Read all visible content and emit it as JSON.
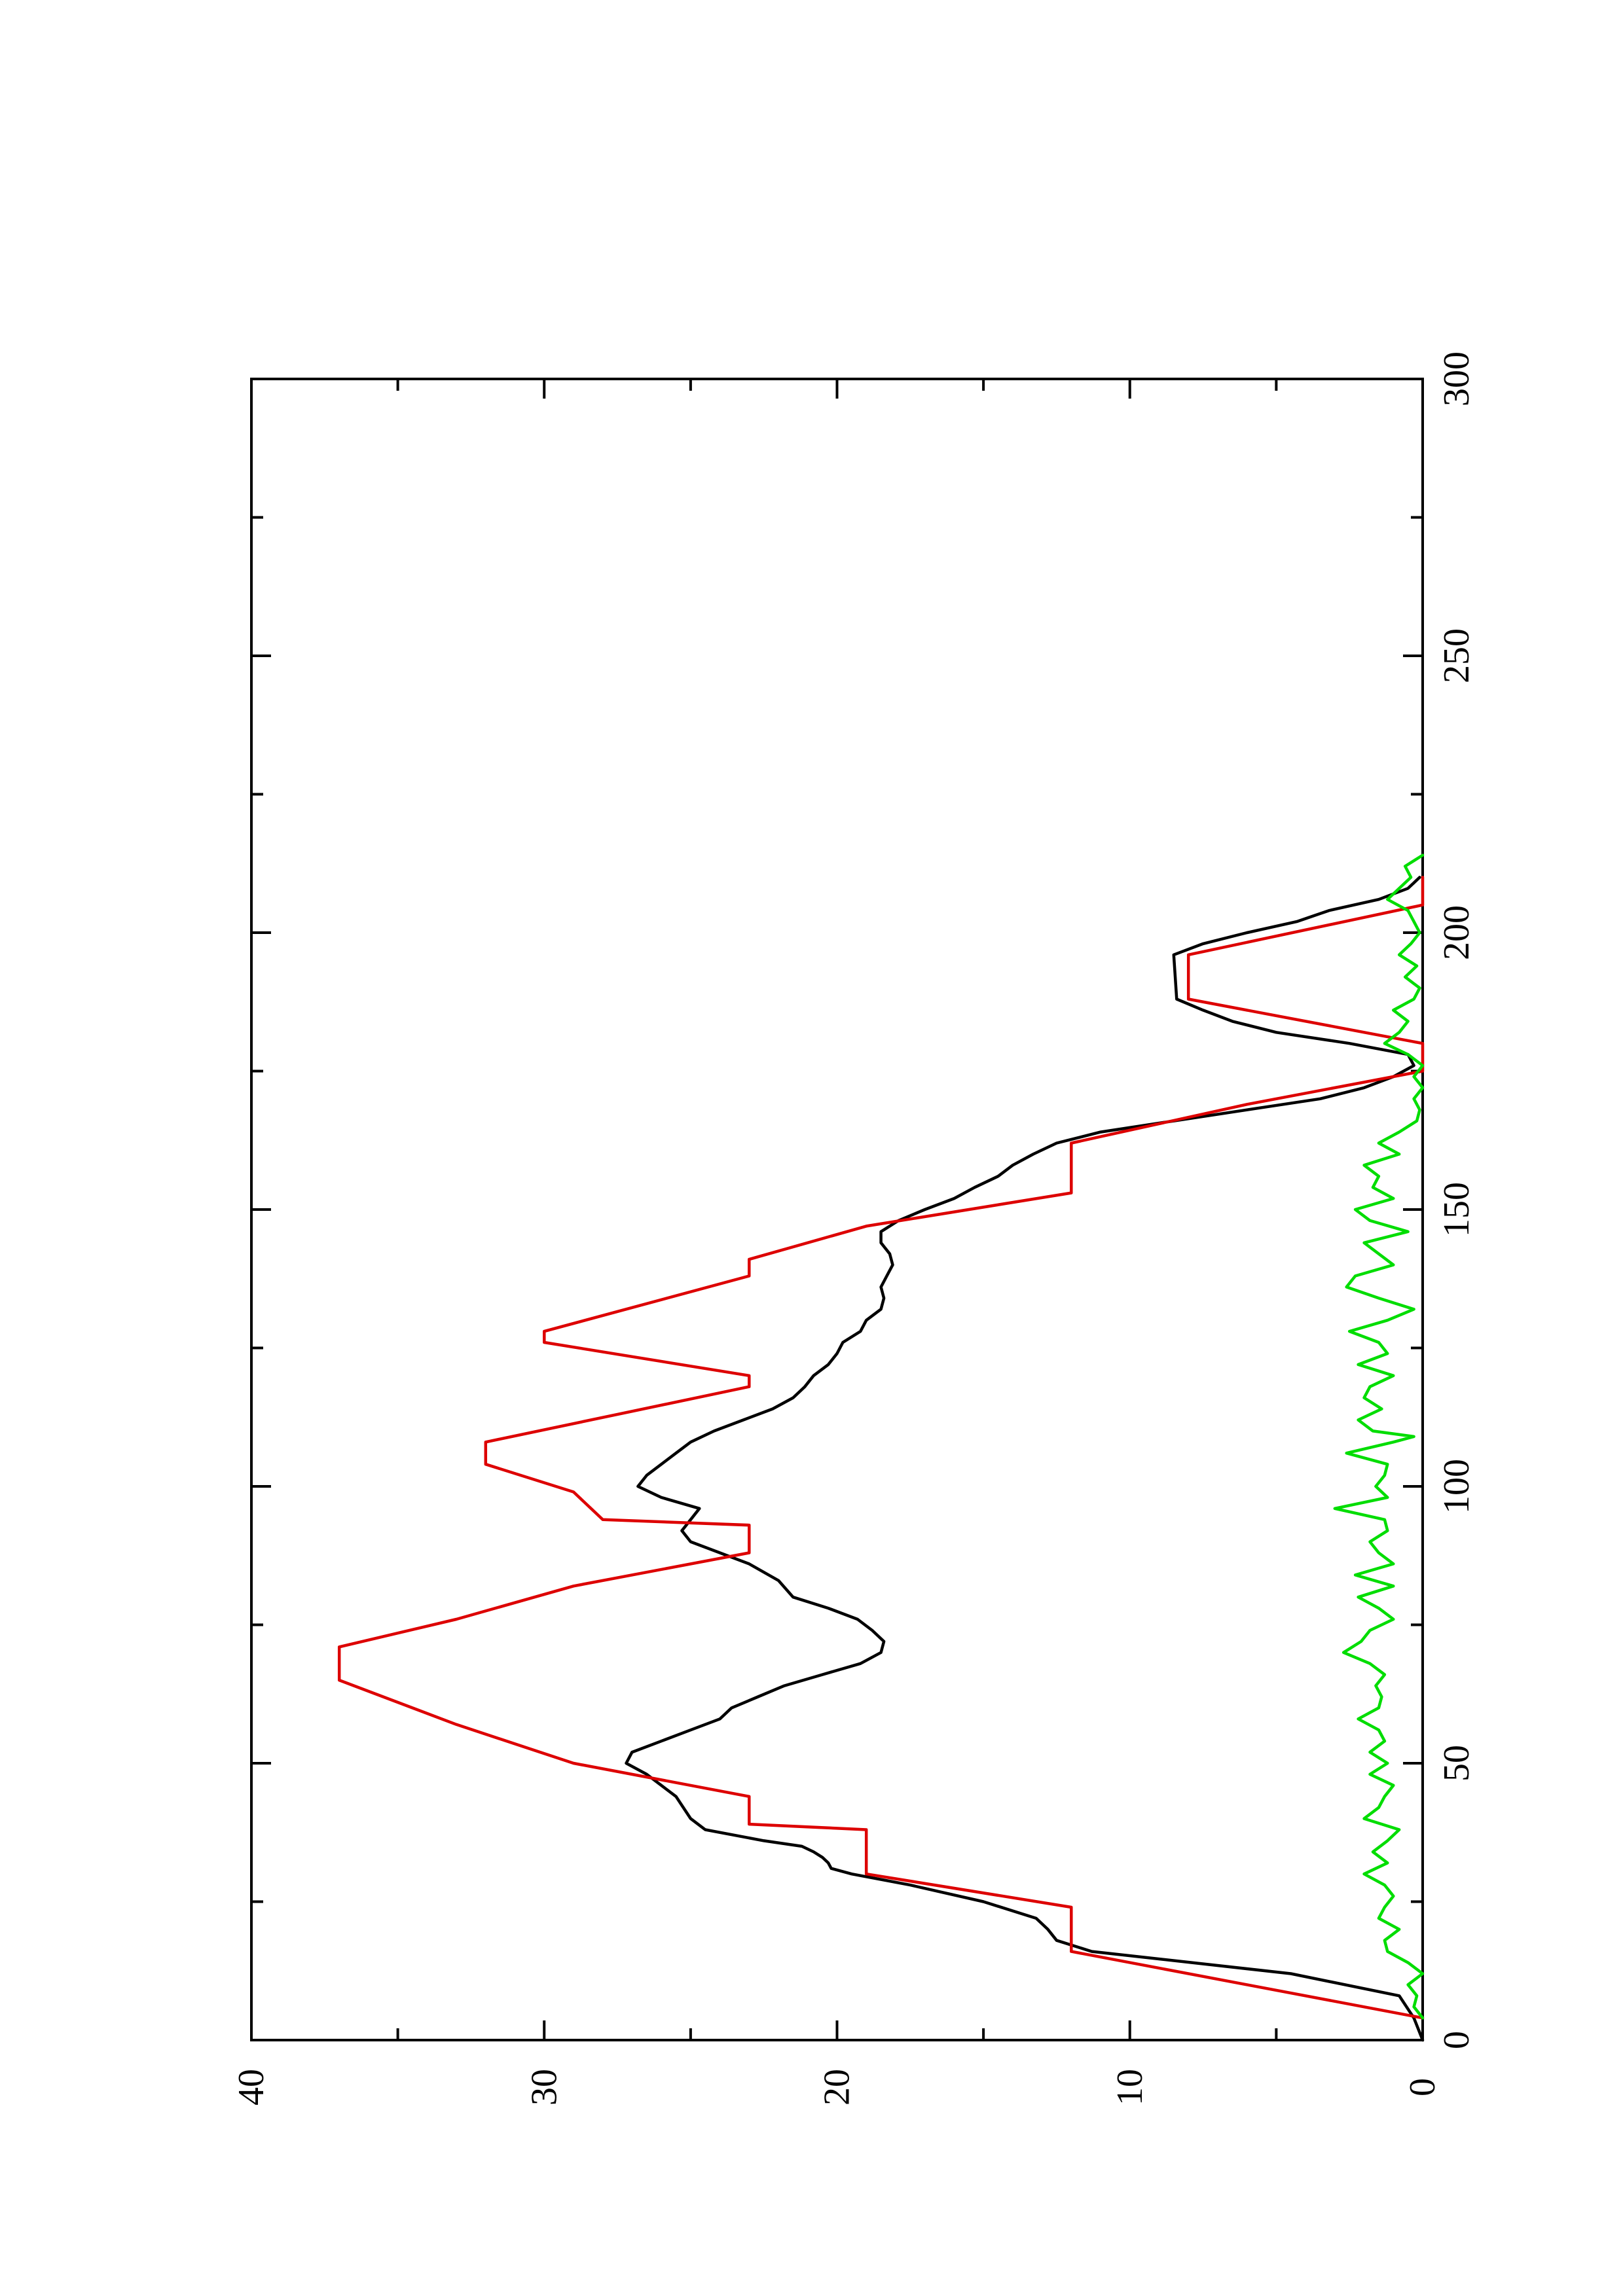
{
  "chart_data": {
    "type": "line",
    "orientation": "rotated-90-ccw",
    "title": "",
    "xlabel": "",
    "ylabel": "",
    "xlim": [
      0,
      300
    ],
    "ylim": [
      0,
      40
    ],
    "x_ticks": [
      0,
      50,
      100,
      150,
      200,
      250,
      300
    ],
    "y_ticks": [
      0,
      10,
      20,
      30,
      40
    ],
    "x_tick_labels": [
      "0",
      "50",
      "100",
      "150",
      "200",
      "250",
      "300"
    ],
    "y_tick_labels": [
      "0",
      "10",
      "20",
      "30",
      "40"
    ],
    "grid": false,
    "legend": "none",
    "series": [
      {
        "color": "#000000",
        "points": [
          [
            0,
            0
          ],
          [
            4,
            0.3
          ],
          [
            8,
            0.8
          ],
          [
            12,
            4.5
          ],
          [
            16,
            11.3
          ],
          [
            18,
            12.5
          ],
          [
            20,
            12.8
          ],
          [
            22,
            13.2
          ],
          [
            25,
            15
          ],
          [
            28,
            17.5
          ],
          [
            30,
            19.5
          ],
          [
            31,
            20.2
          ],
          [
            32,
            20.3
          ],
          [
            33,
            20.5
          ],
          [
            34,
            20.8
          ],
          [
            35,
            21.2
          ],
          [
            36,
            22.5
          ],
          [
            38,
            24.5
          ],
          [
            40,
            25
          ],
          [
            44,
            25.5
          ],
          [
            46,
            26
          ],
          [
            48,
            26.5
          ],
          [
            50,
            27.2
          ],
          [
            52,
            27
          ],
          [
            54,
            26
          ],
          [
            56,
            25
          ],
          [
            58,
            24
          ],
          [
            59,
            23.8
          ],
          [
            60,
            23.6
          ],
          [
            62,
            22.7
          ],
          [
            64,
            21.8
          ],
          [
            66,
            20.5
          ],
          [
            68,
            19.2
          ],
          [
            70,
            18.5
          ],
          [
            72,
            18.4
          ],
          [
            74,
            18.8
          ],
          [
            76,
            19.3
          ],
          [
            78,
            20.3
          ],
          [
            80,
            21.5
          ],
          [
            83,
            22
          ],
          [
            86,
            23
          ],
          [
            88,
            24
          ],
          [
            90,
            25
          ],
          [
            92,
            25.3
          ],
          [
            94,
            25
          ],
          [
            96,
            24.7
          ],
          [
            98,
            26
          ],
          [
            100,
            26.8
          ],
          [
            102,
            26.5
          ],
          [
            104,
            26
          ],
          [
            106,
            25.5
          ],
          [
            108,
            25
          ],
          [
            110,
            24.2
          ],
          [
            112,
            23.2
          ],
          [
            114,
            22.2
          ],
          [
            116,
            21.5
          ],
          [
            118,
            21.1
          ],
          [
            120,
            20.8
          ],
          [
            122,
            20.3
          ],
          [
            124,
            20
          ],
          [
            126,
            19.8
          ],
          [
            128,
            19.2
          ],
          [
            130,
            19
          ],
          [
            132,
            18.5
          ],
          [
            134,
            18.4
          ],
          [
            136,
            18.5
          ],
          [
            138,
            18.3
          ],
          [
            140,
            18.1
          ],
          [
            142,
            18.2
          ],
          [
            144,
            18.5
          ],
          [
            146,
            18.5
          ],
          [
            148,
            17.9
          ],
          [
            150,
            17
          ],
          [
            152,
            16
          ],
          [
            154,
            15.3
          ],
          [
            156,
            14.5
          ],
          [
            158,
            14
          ],
          [
            160,
            13.3
          ],
          [
            162,
            12.5
          ],
          [
            164,
            11
          ],
          [
            166,
            8.5
          ],
          [
            168,
            6
          ],
          [
            170,
            3.5
          ],
          [
            172,
            2
          ],
          [
            174,
            1
          ],
          [
            176,
            0.3
          ],
          [
            178,
            0.5
          ],
          [
            180,
            2.5
          ],
          [
            182,
            5
          ],
          [
            184,
            6.5
          ],
          [
            186,
            7.5
          ],
          [
            188,
            8.4
          ],
          [
            196,
            8.5
          ],
          [
            198,
            7.5
          ],
          [
            200,
            6
          ],
          [
            202,
            4.3
          ],
          [
            204,
            3.2
          ],
          [
            206,
            1.5
          ],
          [
            208,
            0.5
          ],
          [
            210,
            0.1
          ]
        ]
      },
      {
        "color": "#dd0000",
        "points": [
          [
            4,
            0
          ],
          [
            10,
            6
          ],
          [
            16,
            12
          ],
          [
            24,
            12
          ],
          [
            30,
            19
          ],
          [
            38,
            19
          ],
          [
            39,
            23
          ],
          [
            44,
            23
          ],
          [
            50,
            29
          ],
          [
            57,
            33
          ],
          [
            65,
            37
          ],
          [
            71,
            37
          ],
          [
            76,
            33
          ],
          [
            82,
            29
          ],
          [
            88,
            23
          ],
          [
            93,
            23
          ],
          [
            94,
            28
          ],
          [
            99,
            29
          ],
          [
            104,
            32
          ],
          [
            108,
            32
          ],
          [
            118,
            23
          ],
          [
            120,
            23
          ],
          [
            126,
            30
          ],
          [
            128,
            30
          ],
          [
            138,
            23
          ],
          [
            141,
            23
          ],
          [
            147,
            19
          ],
          [
            153,
            12
          ],
          [
            162,
            12
          ],
          [
            169,
            6
          ],
          [
            175,
            0
          ],
          [
            180,
            0
          ],
          [
            183,
            3
          ],
          [
            188,
            8
          ],
          [
            196,
            8
          ],
          [
            205,
            0
          ],
          [
            210,
            0
          ]
        ]
      },
      {
        "color": "#00dd00",
        "points": [
          [
            4,
            0
          ],
          [
            6,
            0.3
          ],
          [
            8,
            0.2
          ],
          [
            10,
            0.5
          ],
          [
            12,
            0
          ],
          [
            14,
            0.5
          ],
          [
            16,
            1.2
          ],
          [
            18,
            1.3
          ],
          [
            20,
            0.8
          ],
          [
            22,
            1.5
          ],
          [
            24,
            1.3
          ],
          [
            26,
            1
          ],
          [
            28,
            1.3
          ],
          [
            30,
            2
          ],
          [
            32,
            1.2
          ],
          [
            34,
            1.7
          ],
          [
            36,
            1.2
          ],
          [
            38,
            0.8
          ],
          [
            40,
            2
          ],
          [
            42,
            1.5
          ],
          [
            44,
            1.3
          ],
          [
            46,
            1
          ],
          [
            48,
            1.8
          ],
          [
            50,
            1.2
          ],
          [
            52,
            1.8
          ],
          [
            54,
            1.3
          ],
          [
            56,
            1.5
          ],
          [
            58,
            2.2
          ],
          [
            60,
            1.5
          ],
          [
            62,
            1.4
          ],
          [
            64,
            1.6
          ],
          [
            66,
            1.3
          ],
          [
            68,
            1.8
          ],
          [
            70,
            2.7
          ],
          [
            72,
            2.1
          ],
          [
            74,
            1.8
          ],
          [
            76,
            1
          ],
          [
            78,
            1.5
          ],
          [
            80,
            2.2
          ],
          [
            82,
            1
          ],
          [
            84,
            2.3
          ],
          [
            86,
            1
          ],
          [
            88,
            1.5
          ],
          [
            90,
            1.8
          ],
          [
            92,
            1.2
          ],
          [
            94,
            1.3
          ],
          [
            96,
            3
          ],
          [
            98,
            1.2
          ],
          [
            100,
            1.6
          ],
          [
            102,
            1.3
          ],
          [
            104,
            1.2
          ],
          [
            106,
            2.6
          ],
          [
            108,
            1
          ],
          [
            109,
            0.3
          ],
          [
            110,
            1.7
          ],
          [
            112,
            2.2
          ],
          [
            114,
            1.4
          ],
          [
            116,
            2
          ],
          [
            118,
            1.8
          ],
          [
            120,
            1
          ],
          [
            122,
            2.2
          ],
          [
            124,
            1.2
          ],
          [
            126,
            1.5
          ],
          [
            128,
            2.5
          ],
          [
            130,
            1.2
          ],
          [
            132,
            0.3
          ],
          [
            134,
            1.5
          ],
          [
            136,
            2.6
          ],
          [
            138,
            2.3
          ],
          [
            140,
            1
          ],
          [
            142,
            1.5
          ],
          [
            144,
            2
          ],
          [
            146,
            0.5
          ],
          [
            148,
            1.8
          ],
          [
            150,
            2.3
          ],
          [
            152,
            1
          ],
          [
            154,
            1.7
          ],
          [
            156,
            1.5
          ],
          [
            158,
            2
          ],
          [
            160,
            0.8
          ],
          [
            162,
            1.5
          ],
          [
            164,
            0.8
          ],
          [
            166,
            0.2
          ],
          [
            168,
            0.1
          ],
          [
            170,
            0.3
          ],
          [
            172,
            0
          ],
          [
            174,
            0.3
          ],
          [
            176,
            0
          ],
          [
            178,
            0.5
          ],
          [
            180,
            1.3
          ],
          [
            182,
            0.8
          ],
          [
            184,
            0.5
          ],
          [
            186,
            1
          ],
          [
            188,
            0.3
          ],
          [
            190,
            0.1
          ],
          [
            192,
            0.6
          ],
          [
            194,
            0.2
          ],
          [
            196,
            0.8
          ],
          [
            198,
            0.4
          ],
          [
            200,
            0.1
          ],
          [
            202,
            0.3
          ],
          [
            204,
            0.5
          ],
          [
            206,
            1.2
          ],
          [
            208,
            0.8
          ],
          [
            210,
            0.4
          ],
          [
            212,
            0.6
          ],
          [
            214,
            0
          ]
        ]
      }
    ]
  }
}
